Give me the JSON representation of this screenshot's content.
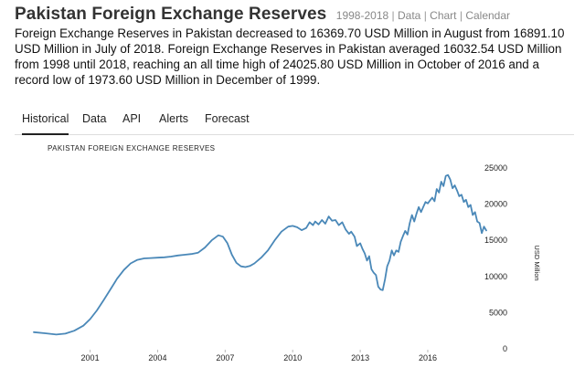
{
  "header": {
    "title": "Pakistan Foreign Exchange Reserves",
    "links": [
      "1998-2018",
      "Data",
      "Chart",
      "Calendar"
    ],
    "separator": "|"
  },
  "description": "Foreign Exchange Reserves in Pakistan decreased to 16369.70 USD Million in August from 16891.10 USD Million in July of 2018. Foreign Exchange Reserves in Pakistan averaged 16032.54 USD Million from 1998 until 2018, reaching an all time high of 24025.80 USD Million in October of 2016 and a record low of 1973.60 USD Million in December of 1999.",
  "tabs": [
    {
      "label": "Historical",
      "active": true
    },
    {
      "label": "Data",
      "active": false
    },
    {
      "label": "API",
      "active": false
    },
    {
      "label": "Alerts",
      "active": false
    },
    {
      "label": "Forecast",
      "active": false
    }
  ],
  "colors": {
    "line": "#4a88b8",
    "text": "#222222"
  },
  "chart_data": {
    "type": "line",
    "title": "PAKISTAN FOREIGN EXCHANGE RESERVES",
    "ylabel": "USD Million",
    "xlim": [
      1998.5,
      2018.6
    ],
    "ylim": [
      0,
      25000
    ],
    "x_ticks": [
      2001,
      2004,
      2007,
      2010,
      2013,
      2016
    ],
    "y_ticks": [
      0,
      5000,
      10000,
      15000,
      20000,
      25000
    ],
    "grid": false,
    "series": [
      {
        "x": [
          1998.5,
          1999.0,
          1999.5,
          1999.9,
          2000.3,
          2000.7,
          2001.0,
          2001.3,
          2001.6,
          2001.9,
          2002.2,
          2002.5,
          2002.8,
          2003.1,
          2003.4,
          2003.7,
          2004.0,
          2004.3,
          2004.6,
          2004.9,
          2005.2,
          2005.5,
          2005.8,
          2006.1,
          2006.4,
          2006.7,
          2006.9,
          2007.1,
          2007.3,
          2007.5,
          2007.7,
          2007.9,
          2008.1,
          2008.3,
          2008.6,
          2008.9,
          2009.2,
          2009.5,
          2009.8,
          2010.0,
          2010.2,
          2010.4,
          2010.6,
          2010.75,
          2010.9,
          2011.0,
          2011.15,
          2011.3,
          2011.45,
          2011.6,
          2011.75,
          2011.9,
          2012.05,
          2012.2,
          2012.35,
          2012.5,
          2012.6,
          2012.75,
          2012.85,
          2013.0,
          2013.1,
          2013.2,
          2013.3,
          2013.4,
          2013.5,
          2013.6,
          2013.7,
          2013.8,
          2013.9,
          2014.0,
          2014.1,
          2014.2,
          2014.3,
          2014.4,
          2014.5,
          2014.6,
          2014.7,
          2014.8,
          2014.9,
          2015.0,
          2015.1,
          2015.2,
          2015.3,
          2015.4,
          2015.5,
          2015.6,
          2015.7,
          2015.8,
          2015.9,
          2016.0,
          2016.1,
          2016.2,
          2016.3,
          2016.4,
          2016.5,
          2016.6,
          2016.7,
          2016.8,
          2016.9,
          2017.0,
          2017.1,
          2017.2,
          2017.3,
          2017.4,
          2017.5,
          2017.6,
          2017.7,
          2017.8,
          2017.9,
          2018.0,
          2018.1,
          2018.2,
          2018.3,
          2018.4,
          2018.5,
          2018.6
        ],
        "values": [
          2300,
          2150,
          1973.6,
          2100,
          2500,
          3200,
          4100,
          5300,
          6700,
          8200,
          9700,
          10900,
          11800,
          12300,
          12500,
          12550,
          12600,
          12650,
          12750,
          12900,
          13000,
          13100,
          13300,
          14000,
          15000,
          15700,
          15500,
          14600,
          13000,
          11900,
          11400,
          11300,
          11450,
          11800,
          12600,
          13600,
          15000,
          16200,
          16900,
          17000,
          16800,
          16400,
          16700,
          17500,
          17100,
          17600,
          17200,
          17800,
          17300,
          18300,
          17700,
          17800,
          17100,
          17500,
          16500,
          15900,
          16200,
          15500,
          14200,
          14600,
          13800,
          13200,
          12200,
          12800,
          11000,
          10500,
          10200,
          8600,
          8200,
          8100,
          9600,
          11400,
          12200,
          13600,
          12900,
          13600,
          13400,
          14800,
          15600,
          16300,
          15800,
          17400,
          18500,
          17600,
          18700,
          19600,
          18900,
          19600,
          20300,
          20100,
          20500,
          20900,
          20400,
          22100,
          21600,
          23100,
          22500,
          23900,
          24025.8,
          23400,
          22200,
          22600,
          21900,
          21100,
          21300,
          20300,
          20600,
          19600,
          19900,
          18500,
          18900,
          17600,
          17400,
          16000,
          16900,
          16369.7
        ]
      }
    ]
  }
}
